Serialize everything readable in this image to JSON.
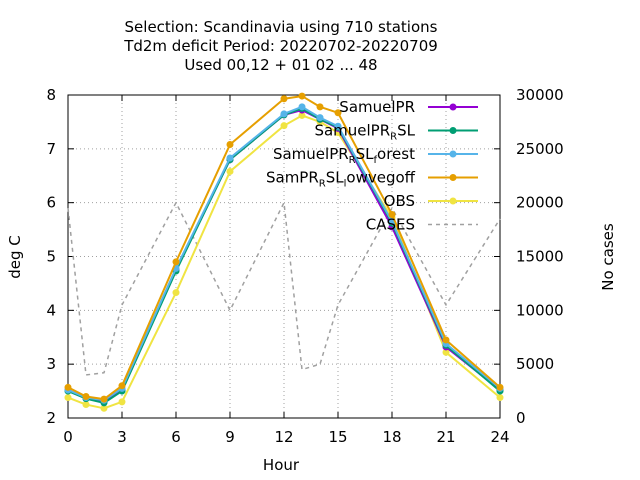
{
  "chart_data": {
    "type": "line",
    "title_lines": [
      "Selection: Scandinavia using   710 stations",
      "Td2m deficit   Period: 20220702-20220709",
      "Used  00,12  + 01 02 ... 48"
    ],
    "xlabel": "Hour",
    "ylabel": "deg C",
    "y2label": "No cases",
    "xlim": [
      0,
      24
    ],
    "ylim": [
      2,
      8
    ],
    "y2lim": [
      0,
      30000
    ],
    "xticks": [
      "0",
      "3",
      "6",
      "9",
      "12",
      "15",
      "18",
      "21",
      "24"
    ],
    "yticks": [
      "2",
      "3",
      "4",
      "5",
      "6",
      "7",
      "8"
    ],
    "y2ticks": [
      "0",
      "5000",
      "10000",
      "15000",
      "20000",
      "25000",
      "30000"
    ],
    "grid": true,
    "legend_position": "top-right",
    "x": [
      0,
      1,
      2,
      3,
      6,
      9,
      12,
      13,
      14,
      15,
      18,
      21,
      24
    ],
    "series": [
      {
        "name": "SamuelPR",
        "legend_parts": [
          [
            "SamuelPR",
            ""
          ]
        ],
        "color": "#9400d3",
        "axis": "y",
        "marker": true,
        "values": [
          2.52,
          2.37,
          2.3,
          2.52,
          4.75,
          6.8,
          7.63,
          7.72,
          7.55,
          7.38,
          5.55,
          3.32,
          2.52
        ]
      },
      {
        "name": "SamuelPR_RSL",
        "legend_parts": [
          [
            "SamuelPR",
            ""
          ],
          [
            "R",
            "sub"
          ],
          [
            "SL",
            ""
          ]
        ],
        "color": "#009e73",
        "axis": "y",
        "marker": true,
        "values": [
          2.5,
          2.36,
          2.28,
          2.5,
          4.73,
          6.8,
          7.63,
          7.75,
          7.55,
          7.4,
          5.62,
          3.35,
          2.5
        ]
      },
      {
        "name": "SamuelPR_RSL_forest",
        "legend_parts": [
          [
            "SamuelPR",
            ""
          ],
          [
            "R",
            "sub"
          ],
          [
            "SL",
            ""
          ],
          [
            "f",
            "sub"
          ],
          [
            "orest",
            ""
          ]
        ],
        "color": "#56b4e9",
        "axis": "y",
        "marker": true,
        "values": [
          2.52,
          2.38,
          2.33,
          2.55,
          4.78,
          6.83,
          7.65,
          7.78,
          7.58,
          7.42,
          5.65,
          3.38,
          2.55
        ]
      },
      {
        "name": "SamPR_RSL_lowvegoff",
        "legend_parts": [
          [
            "SamPR",
            ""
          ],
          [
            "R",
            "sub"
          ],
          [
            "SL",
            ""
          ],
          [
            "l",
            "sub"
          ],
          [
            "owvegoff",
            ""
          ]
        ],
        "color": "#e69f00",
        "axis": "y",
        "marker": true,
        "values": [
          2.57,
          2.4,
          2.35,
          2.6,
          4.9,
          7.08,
          7.93,
          7.98,
          7.78,
          7.67,
          5.78,
          3.45,
          2.57
        ]
      },
      {
        "name": "OBS",
        "legend_parts": [
          [
            "OBS",
            ""
          ]
        ],
        "color": "#f0e442",
        "axis": "y",
        "marker": true,
        "values": [
          2.38,
          2.25,
          2.18,
          2.3,
          4.33,
          6.58,
          7.43,
          7.62,
          7.5,
          7.3,
          5.72,
          3.22,
          2.38
        ]
      },
      {
        "name": "CASES",
        "legend_parts": [
          [
            "CASES",
            ""
          ]
        ],
        "color": "#a0a0a0",
        "axis": "y2",
        "marker": false,
        "dashed": true,
        "values": [
          19500,
          4000,
          4200,
          10500,
          20000,
          10000,
          20000,
          4500,
          5000,
          10500,
          19500,
          10500,
          18500
        ]
      }
    ]
  }
}
